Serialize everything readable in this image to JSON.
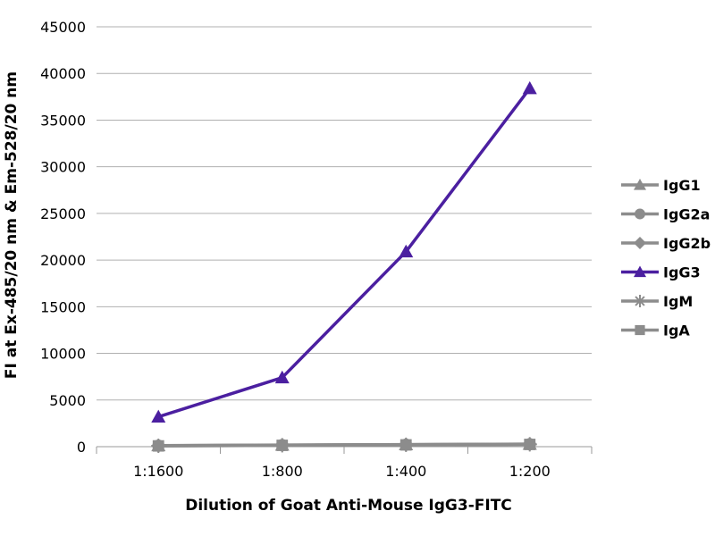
{
  "chart_data": {
    "type": "line",
    "title": "",
    "xlabel": "Dilution of Goat Anti-Mouse IgG3-FITC",
    "ylabel": "FI at Ex-485/20 nm & Em-528/20 nm",
    "categories": [
      "1:1600",
      "1:800",
      "1:400",
      "1:200"
    ],
    "ylim": [
      0,
      45000
    ],
    "yticks": [
      0,
      5000,
      10000,
      15000,
      20000,
      25000,
      30000,
      35000,
      40000,
      45000
    ],
    "grid": "horizontal",
    "legend_position": "right",
    "series": [
      {
        "name": "IgG1",
        "marker": "triangle",
        "color": "#8c8c8c",
        "values": [
          120,
          180,
          230,
          280
        ]
      },
      {
        "name": "IgG2a",
        "marker": "circle",
        "color": "#8c8c8c",
        "values": [
          110,
          170,
          220,
          270
        ]
      },
      {
        "name": "IgG2b",
        "marker": "diamond",
        "color": "#8c8c8c",
        "values": [
          100,
          160,
          210,
          260
        ]
      },
      {
        "name": "IgG3",
        "marker": "triangle",
        "color": "#4b1fa0",
        "values": [
          3200,
          7400,
          20900,
          38400
        ]
      },
      {
        "name": "IgM",
        "marker": "star",
        "color": "#8c8c8c",
        "values": [
          90,
          150,
          200,
          250
        ]
      },
      {
        "name": "IgA",
        "marker": "square",
        "color": "#8c8c8c",
        "values": [
          80,
          140,
          190,
          240
        ]
      }
    ]
  }
}
